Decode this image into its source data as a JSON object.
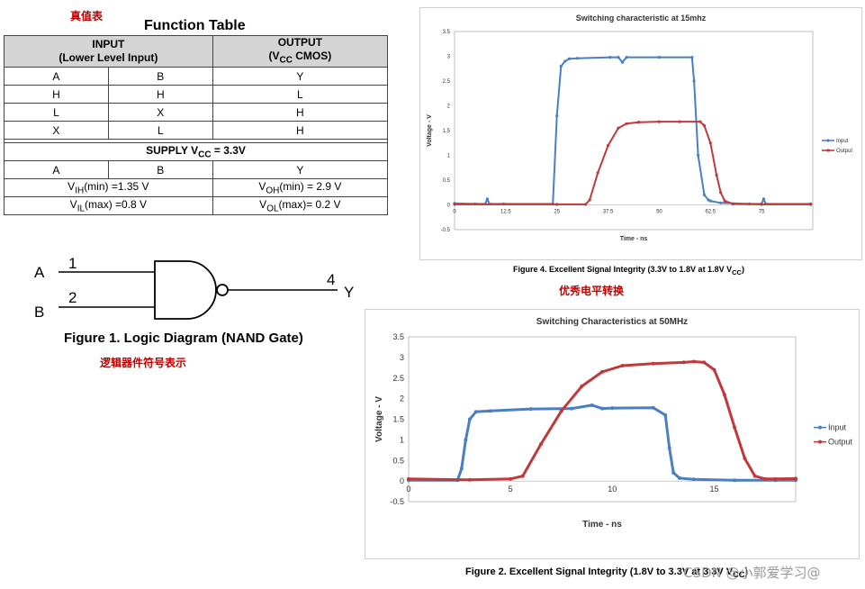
{
  "notes": {
    "truth_table": "真值表",
    "logic_symbol": "逻辑器件符号表示",
    "level_shift": "优秀电平转换"
  },
  "function_table": {
    "title": "Function Table",
    "input_header_1": "INPUT",
    "input_header_2": "(Lower Level Input)",
    "output_header_1": "OUTPUT",
    "output_header_2_pre": "(V",
    "output_header_2_sub": "CC",
    "output_header_2_post": " CMOS)",
    "rows": [
      [
        "A",
        "B",
        "Y"
      ],
      [
        "H",
        "H",
        "L"
      ],
      [
        "L",
        "X",
        "H"
      ],
      [
        "X",
        "L",
        "H"
      ]
    ],
    "supply_pre": "SUPPLY V",
    "supply_sub": "CC",
    "supply_post": " = 3.3V",
    "supply_cols": [
      "A",
      "B",
      "Y"
    ],
    "vih": {
      "pre": "V",
      "sub": "IH",
      "post": "(min) =1.35 V"
    },
    "vil": {
      "pre": "V",
      "sub": "IL",
      "post": "(max) =0.8 V"
    },
    "voh": {
      "pre": "V",
      "sub": "OH",
      "post": "(min) = 2.9 V"
    },
    "vol": {
      "pre": "V",
      "sub": "OL",
      "post": "(max)= 0.2 V"
    }
  },
  "logic_diagram": {
    "input_a": "A",
    "input_b": "B",
    "pin_1": "1",
    "pin_2": "2",
    "pin_4": "4",
    "output_y": "Y",
    "caption": "Figure 1.  Logic Diagram (NAND Gate)"
  },
  "figure4": {
    "caption_pre": "Figure 4.  Excellent Signal Integrity (3.3V to 1.8V at 1.8V V",
    "caption_sub": "CC",
    "caption_post": ")"
  },
  "figure2": {
    "caption": "Figure 2.  Excellent Signal Integrity (1.8V to 3.3V at 3.3V V",
    "caption_sub": "CC",
    "caption_post": ")"
  },
  "watermark": "CSDN @小郭爱学习@",
  "colors": {
    "input": "#4a7fc1",
    "output": "#c0393b",
    "note": "#c00000"
  },
  "chart_data": [
    {
      "type": "line",
      "title": "Switching characteristic at 15mhz",
      "xlabel": "Time - ns",
      "ylabel": "Voltage - V",
      "xlim": [
        0,
        87.5
      ],
      "ylim": [
        -0.5,
        3.5
      ],
      "xticks": [
        0,
        12.5,
        25,
        37.5,
        50,
        62.5,
        75
      ],
      "yticks": [
        -0.5,
        0,
        0.5,
        1,
        1.5,
        2,
        2.5,
        3,
        3.5
      ],
      "legend": "right",
      "series": [
        {
          "name": "Input",
          "x": [
            0,
            5,
            7.5,
            8,
            8.5,
            12,
            24,
            25,
            26,
            27,
            28,
            30,
            38,
            40,
            41,
            42,
            50,
            58,
            58.5,
            59.5,
            61,
            62,
            62.5,
            65,
            72,
            75,
            75.5,
            76,
            87
          ],
          "y": [
            0.03,
            0.02,
            0.02,
            0.12,
            0.02,
            0.02,
            0.02,
            1.8,
            2.8,
            2.9,
            2.95,
            2.96,
            2.98,
            2.98,
            2.88,
            2.98,
            2.98,
            2.98,
            2.5,
            1.0,
            0.2,
            0.1,
            0.08,
            0.04,
            0.02,
            0.02,
            0.12,
            0.02,
            0.02
          ]
        },
        {
          "name": "Output",
          "x": [
            0,
            25,
            32,
            33,
            35,
            37.5,
            40,
            42,
            45,
            50,
            55,
            60,
            61,
            62.5,
            64,
            65,
            66,
            68,
            75,
            87
          ],
          "y": [
            0.01,
            0.01,
            0.01,
            0.1,
            0.65,
            1.2,
            1.55,
            1.64,
            1.67,
            1.68,
            1.68,
            1.68,
            1.6,
            1.25,
            0.6,
            0.25,
            0.08,
            0.02,
            0.01,
            0.01
          ]
        }
      ]
    },
    {
      "type": "line",
      "title": "Switching Characteristics at 50MHz",
      "xlabel": "Time  -  ns",
      "ylabel": "Voltage - V",
      "xlim": [
        0,
        19
      ],
      "ylim": [
        -0.5,
        3.5
      ],
      "xticks": [
        0,
        5,
        10,
        15
      ],
      "yticks": [
        -0.5,
        0,
        0.5,
        1,
        1.5,
        2,
        2.5,
        3,
        3.5
      ],
      "legend": "right",
      "series": [
        {
          "name": "Input",
          "x": [
            0,
            2.4,
            2.6,
            2.8,
            3.0,
            3.3,
            4,
            6,
            8,
            9,
            9.5,
            10,
            12,
            12.6,
            12.8,
            13.0,
            13.3,
            14,
            16,
            18,
            19
          ],
          "y": [
            0.02,
            0.02,
            0.3,
            1.0,
            1.5,
            1.68,
            1.7,
            1.75,
            1.76,
            1.84,
            1.76,
            1.77,
            1.78,
            1.6,
            0.8,
            0.2,
            0.07,
            0.04,
            0.02,
            0.02,
            0.02
          ]
        },
        {
          "name": "Output",
          "x": [
            0,
            3,
            5,
            5.6,
            6.5,
            7.5,
            8.5,
            9.5,
            10.5,
            12,
            13.5,
            14,
            14.5,
            15,
            15.5,
            16,
            16.5,
            17,
            17.5,
            18,
            19
          ],
          "y": [
            0.05,
            0.03,
            0.05,
            0.12,
            0.9,
            1.7,
            2.3,
            2.65,
            2.8,
            2.85,
            2.88,
            2.9,
            2.88,
            2.7,
            2.1,
            1.3,
            0.55,
            0.12,
            0.05,
            0.05,
            0.06
          ]
        }
      ]
    }
  ]
}
